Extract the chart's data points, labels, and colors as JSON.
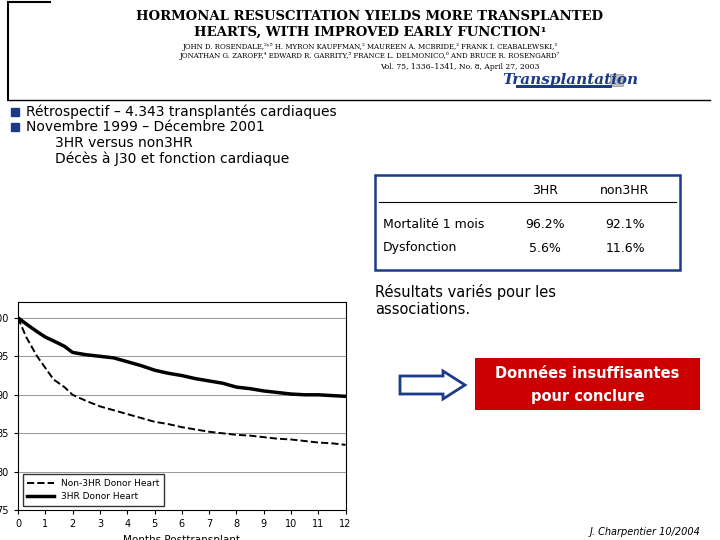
{
  "bg_color": "#ffffff",
  "title_line1": "HORMONAL RESUSCITATION YIELDS MORE TRANSPLANTED",
  "title_line2": "HEARTS, WITH IMPROVED EARLY FUNCTION¹",
  "authors": "JOHN D. ROSENDALE,²ʸ⁵ H. MYRON KAUFFMAN,² MAUREEN A. MCBRIDE,² FRANK I. CEABALEWSKI,³",
  "authors2": "JONATHAN G. ZAROFF,⁴ EDWARD R. GARRITY,⁵ FRANCE L. DELMONICO,⁶ AND BRUCE R. ROSENGARD⁷",
  "journal": "Vol. 75, 1336–1341, No. 8, April 27, 2003",
  "journal_name": "Transplantation",
  "bullet1": "Rétrospectif – 4.343 transplantés cardiaques",
  "bullet2": "Novembre 1999 – Décembre 2001",
  "sub1": "3HR versus non3HR",
  "sub2": "Décès à J30 et fonction cardiaque",
  "table_header": [
    "",
    "3HR",
    "non3HR"
  ],
  "table_row1": [
    "Mortalité 1 mois",
    "96.2%",
    "92.1%"
  ],
  "table_row2": [
    "Dysfonction",
    "5.6%",
    "11.6%"
  ],
  "result_text1": "Résultats variés pour les",
  "result_text2": "associations.",
  "box_text1": "Données insuffisantes",
  "box_text2": "pour conclure",
  "box_color": "#cc0000",
  "box_text_color": "#ffffff",
  "author_footer": "J. Charpentier 10/2004",
  "bullet_color": "#1a3a8a",
  "3HR_x": [
    0,
    0.3,
    0.7,
    1,
    1.3,
    1.7,
    2,
    2.5,
    3,
    3.5,
    4,
    4.5,
    5,
    5.5,
    6,
    6.5,
    7,
    7.5,
    8,
    8.5,
    9,
    9.5,
    10,
    10.5,
    11,
    11.5,
    12
  ],
  "3HR_y": [
    100,
    99.2,
    98.2,
    97.5,
    97,
    96.3,
    95.5,
    95.2,
    95,
    94.8,
    94.3,
    93.8,
    93.2,
    92.8,
    92.5,
    92.1,
    91.8,
    91.5,
    91.0,
    90.8,
    90.5,
    90.3,
    90.1,
    90.0,
    90.0,
    89.9,
    89.8
  ],
  "non3HR_x": [
    0,
    0.3,
    0.7,
    1,
    1.3,
    1.7,
    2,
    2.5,
    3,
    3.5,
    4,
    4.5,
    5,
    5.5,
    6,
    6.5,
    7,
    7.5,
    8,
    8.5,
    9,
    9.5,
    10,
    10.5,
    11,
    11.5,
    12
  ],
  "non3HR_y": [
    100,
    97.5,
    95.0,
    93.5,
    92.0,
    91.0,
    90.0,
    89.2,
    88.5,
    88.0,
    87.5,
    87.0,
    86.5,
    86.2,
    85.8,
    85.5,
    85.2,
    85.0,
    84.8,
    84.7,
    84.5,
    84.3,
    84.2,
    84.0,
    83.8,
    83.7,
    83.5
  ]
}
